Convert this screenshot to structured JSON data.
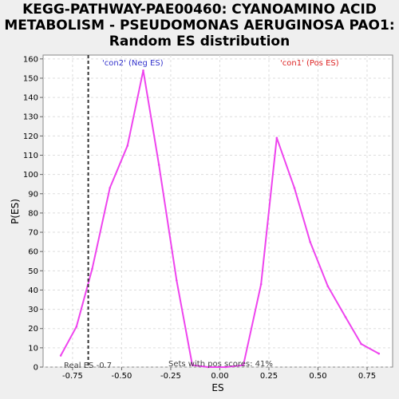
{
  "chart_data": {
    "type": "line",
    "title_lines": [
      "KEGG-PATHWAY-PAE00460: CYANOAMINO ACID",
      "METABOLISM - PSEUDOMONAS AERUGINOSA PAO1:",
      "Random ES distribution"
    ],
    "xlabel": "ES",
    "ylabel": "P(ES)",
    "xlim": [
      -0.9,
      0.88
    ],
    "ylim": [
      0,
      162
    ],
    "x_ticks": [
      -0.75,
      -0.5,
      -0.25,
      0.0,
      0.25,
      0.5,
      0.75
    ],
    "x_tick_labels": [
      "-0.75",
      "-0.50",
      "-0.25",
      "0.00",
      "0.25",
      "0.50",
      "0.75"
    ],
    "y_ticks": [
      0,
      10,
      20,
      30,
      40,
      50,
      60,
      70,
      80,
      90,
      100,
      110,
      120,
      130,
      140,
      150,
      160
    ],
    "grid": true,
    "series": [
      {
        "color": "#ee44ee",
        "x": [
          -0.81,
          -0.73,
          -0.65,
          -0.56,
          -0.47,
          -0.39,
          -0.31,
          -0.22,
          -0.14,
          -0.06,
          0.03,
          0.12,
          0.21,
          0.29,
          0.38,
          0.46,
          0.55,
          0.64,
          0.72,
          0.81
        ],
        "y": [
          6,
          21,
          51,
          93,
          115,
          154,
          105,
          45,
          1,
          0,
          0,
          1,
          43,
          119,
          93,
          65,
          42,
          26,
          12,
          7
        ]
      }
    ],
    "real_es": -0.67,
    "annotations": {
      "neg_label": "'con2' (Neg ES)",
      "pos_label": "'con1' (Pos ES)",
      "real_es_label": "Real ES -0.7",
      "pos_scores_label": "Sets with pos scores: 41%"
    },
    "colors": {
      "neg_label": "#3333cc",
      "pos_label": "#dd2222",
      "real_es_line": "#333333",
      "grid": "#dddddd",
      "plot_bg": "#ffffff"
    }
  }
}
